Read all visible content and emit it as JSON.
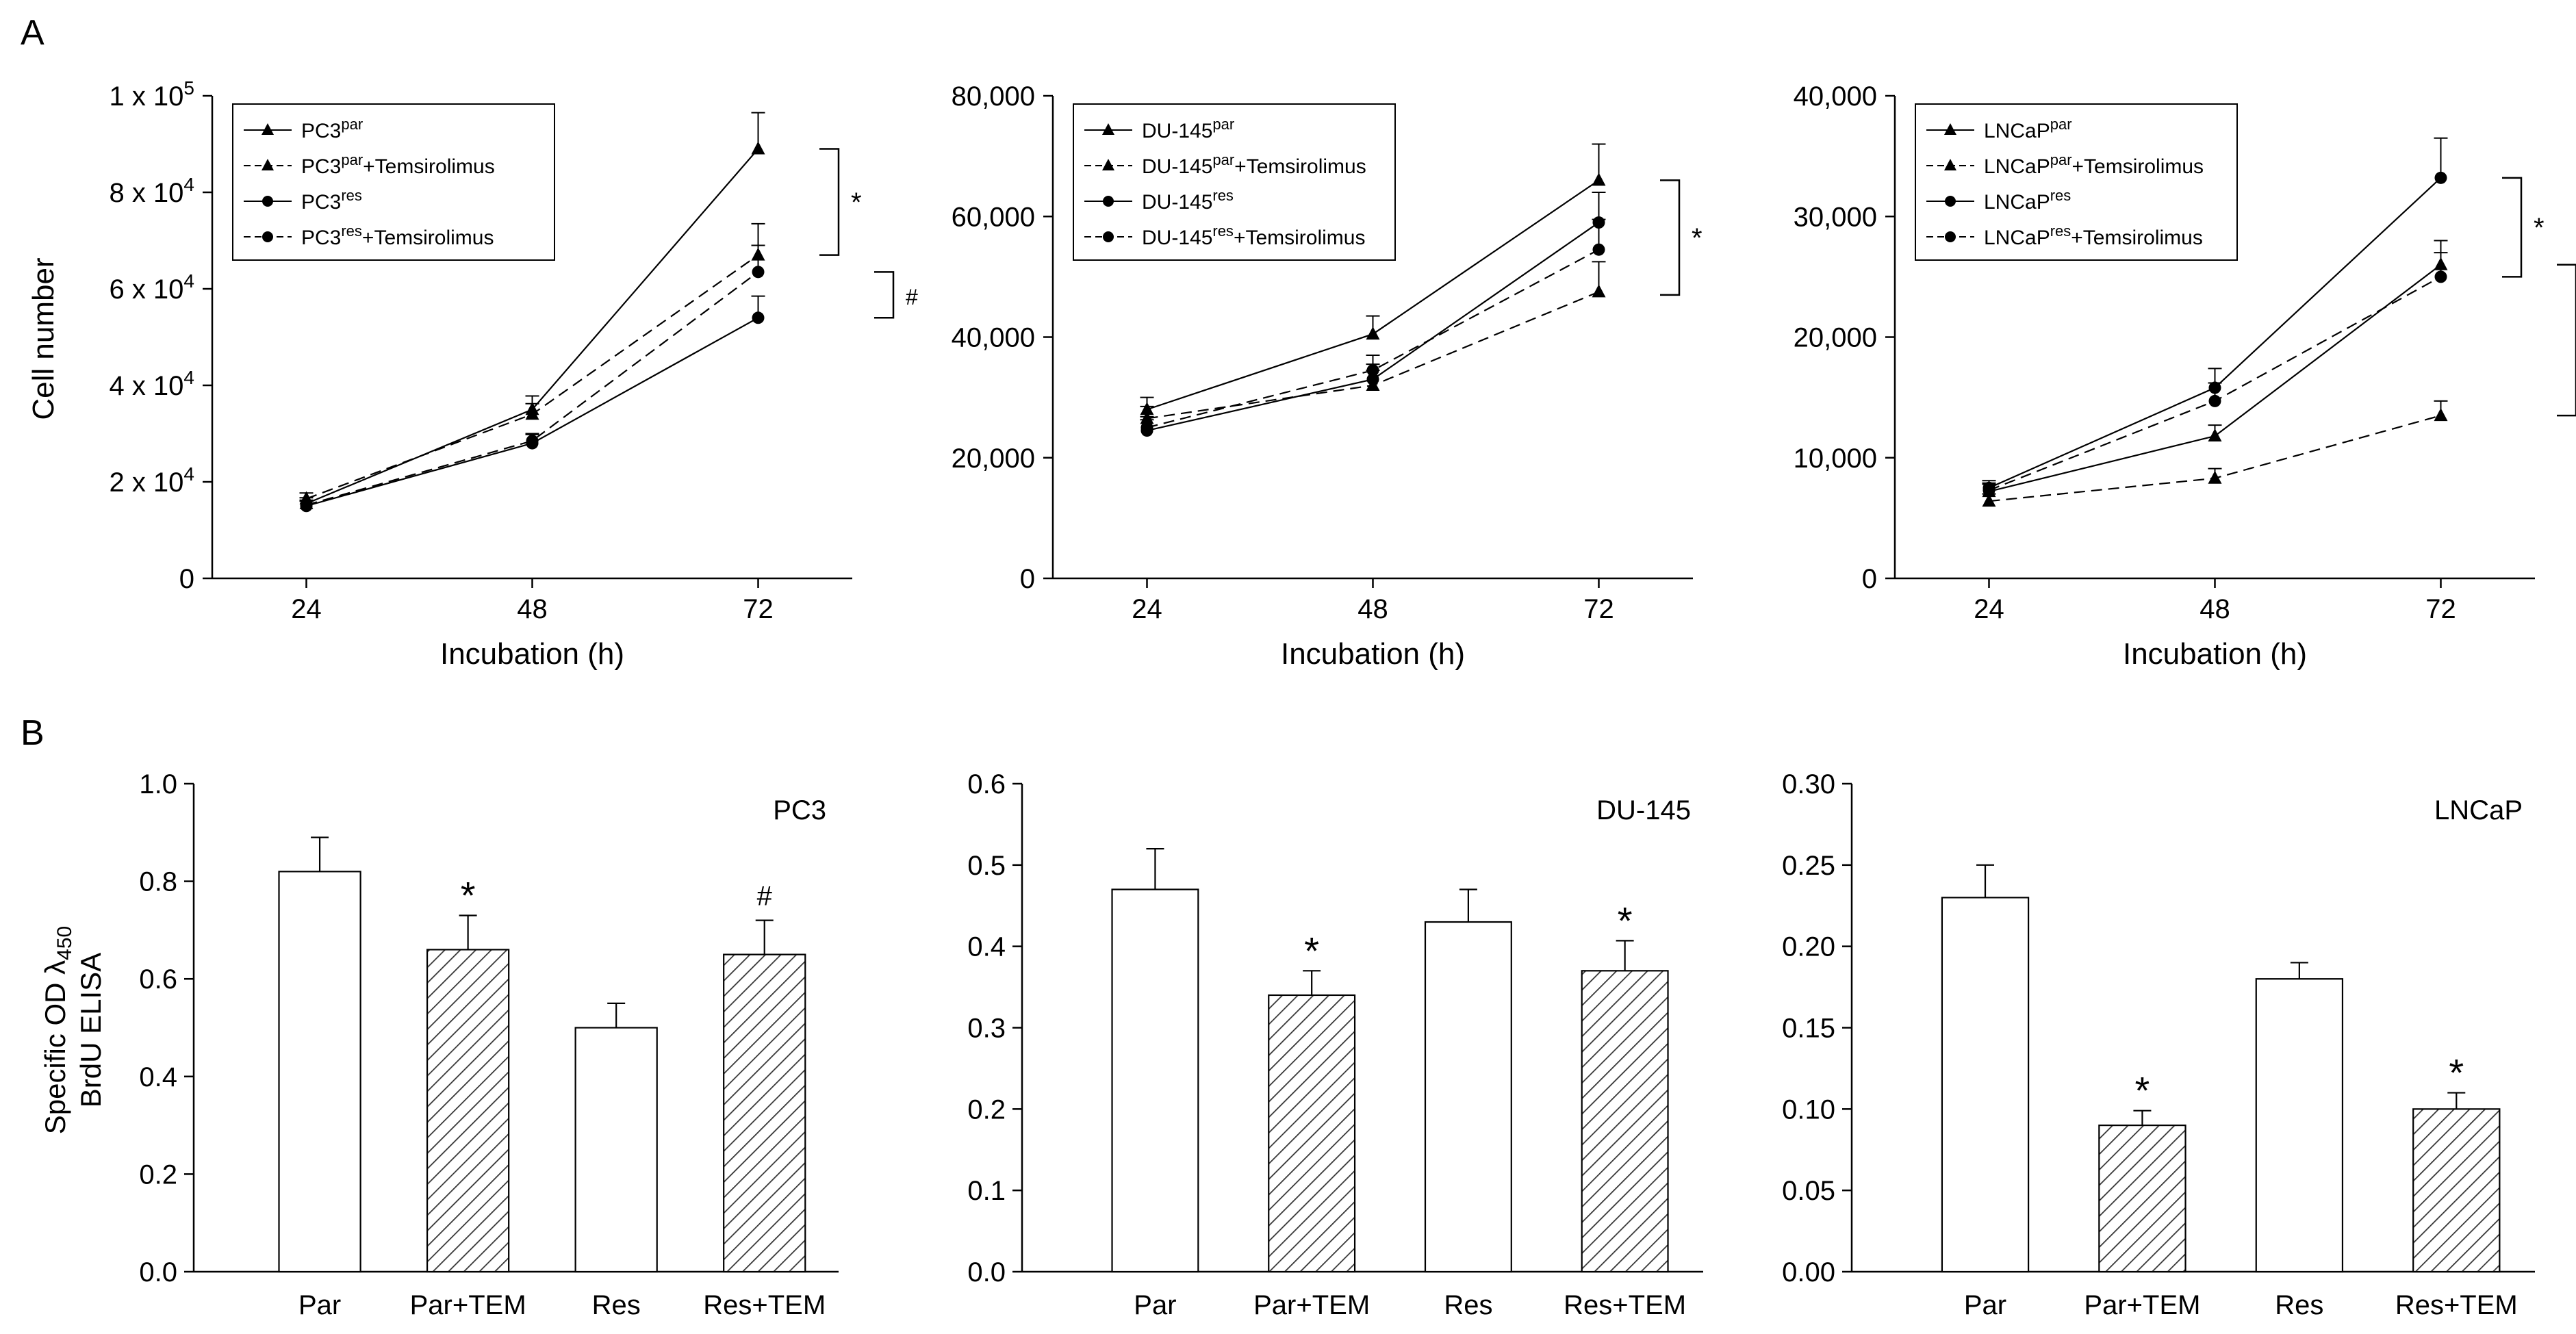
{
  "figure": {
    "panel_a_letter": "A",
    "panel_b_letter": "B",
    "panel_a_ylabel": "Cell number",
    "panel_b_ylabel_line1": "Specific OD λ",
    "panel_b_ylabel_sub": "450",
    "panel_b_ylabel_line2": "BrdU ELISA"
  },
  "chart_data": [
    {
      "id": "a1",
      "type": "line",
      "title": "",
      "cell_line": "PC3",
      "x": [
        24,
        48,
        72
      ],
      "xlabel": "Incubation (h)",
      "ylabel": "Cell number",
      "ylim": [
        0,
        100000
      ],
      "ytick_values": [
        0,
        20000,
        40000,
        60000,
        80000,
        100000
      ],
      "ytick_format": "sci",
      "yticks": [
        {
          "mantissa": "0",
          "exp": ""
        },
        {
          "mantissa": "2 x 10",
          "exp": "4"
        },
        {
          "mantissa": "4 x 10",
          "exp": "4"
        },
        {
          "mantissa": "6 x 10",
          "exp": "4"
        },
        {
          "mantissa": "8 x 10",
          "exp": "4"
        },
        {
          "mantissa": "1 x 10",
          "exp": "5"
        }
      ],
      "xticks": [
        "24",
        "48",
        "72"
      ],
      "legend_position": "top-left",
      "series": [
        {
          "base": "PC3",
          "sup": "par",
          "suffix": "",
          "marker": "triangle",
          "dash": false,
          "values": [
            15500,
            35000,
            89000
          ],
          "errors": [
            1200,
            2800,
            7500
          ]
        },
        {
          "base": "PC3",
          "sup": "par",
          "suffix": "+Temsirolimus",
          "marker": "triangle",
          "dash": true,
          "values": [
            16500,
            34000,
            67000
          ],
          "errors": [
            1200,
            2200,
            6500
          ]
        },
        {
          "base": "PC3",
          "sup": "res",
          "suffix": "",
          "marker": "circle",
          "dash": false,
          "values": [
            15000,
            28000,
            54000
          ],
          "errors": [
            1000,
            1800,
            4500
          ]
        },
        {
          "base": "PC3",
          "sup": "res",
          "suffix": "+Temsirolimus",
          "marker": "circle",
          "dash": true,
          "values": [
            15200,
            28500,
            63500
          ],
          "errors": [
            1000,
            1500,
            5500
          ]
        }
      ],
      "brackets": [
        {
          "from": 89000,
          "to": 67000,
          "label": "*"
        },
        {
          "from": 63500,
          "to": 54000,
          "label": "#"
        }
      ]
    },
    {
      "id": "a2",
      "type": "line",
      "title": "",
      "cell_line": "DU-145",
      "x": [
        24,
        48,
        72
      ],
      "xlabel": "Incubation (h)",
      "ylabel": "",
      "ylim": [
        0,
        80000
      ],
      "ytick_values": [
        0,
        20000,
        40000,
        60000,
        80000
      ],
      "ytick_format": "plain",
      "yticks": [
        {
          "mantissa": "0",
          "exp": ""
        },
        {
          "mantissa": "20,000",
          "exp": ""
        },
        {
          "mantissa": "40,000",
          "exp": ""
        },
        {
          "mantissa": "60,000",
          "exp": ""
        },
        {
          "mantissa": "80,000",
          "exp": ""
        }
      ],
      "xticks": [
        "24",
        "48",
        "72"
      ],
      "legend_position": "top-left",
      "series": [
        {
          "base": "DU-145",
          "sup": "par",
          "suffix": "",
          "marker": "triangle",
          "dash": false,
          "values": [
            28000,
            40500,
            66000
          ],
          "errors": [
            2000,
            3000,
            6000
          ]
        },
        {
          "base": "DU-145",
          "sup": "par",
          "suffix": "+Temsirolimus",
          "marker": "triangle",
          "dash": true,
          "values": [
            26500,
            32000,
            47500
          ],
          "errors": [
            2000,
            2500,
            5000
          ]
        },
        {
          "base": "DU-145",
          "sup": "res",
          "suffix": "",
          "marker": "circle",
          "dash": false,
          "values": [
            24500,
            33000,
            59000
          ],
          "errors": [
            1800,
            2500,
            5000
          ]
        },
        {
          "base": "DU-145",
          "sup": "res",
          "suffix": "+Temsirolimus",
          "marker": "circle",
          "dash": true,
          "values": [
            25000,
            34500,
            54500
          ],
          "errors": [
            1800,
            2500,
            5000
          ]
        }
      ],
      "brackets": [
        {
          "from": 66000,
          "to": 47000,
          "label": "*"
        }
      ]
    },
    {
      "id": "a3",
      "type": "line",
      "title": "",
      "cell_line": "LNCaP",
      "x": [
        24,
        48,
        72
      ],
      "xlabel": "Incubation (h)",
      "ylabel": "",
      "ylim": [
        0,
        40000
      ],
      "ytick_values": [
        0,
        10000,
        20000,
        30000,
        40000
      ],
      "ytick_format": "plain",
      "yticks": [
        {
          "mantissa": "0",
          "exp": ""
        },
        {
          "mantissa": "10,000",
          "exp": ""
        },
        {
          "mantissa": "20,000",
          "exp": ""
        },
        {
          "mantissa": "30,000",
          "exp": ""
        },
        {
          "mantissa": "40,000",
          "exp": ""
        }
      ],
      "xticks": [
        "24",
        "48",
        "72"
      ],
      "legend_position": "top-left",
      "series": [
        {
          "base": "LNCaP",
          "sup": "par",
          "suffix": "",
          "marker": "triangle",
          "dash": false,
          "values": [
            7200,
            11800,
            26000
          ],
          "errors": [
            600,
            900,
            2000
          ]
        },
        {
          "base": "LNCaP",
          "sup": "par",
          "suffix": "+Temsirolimus",
          "marker": "triangle",
          "dash": true,
          "values": [
            6400,
            8300,
            13500
          ],
          "errors": [
            600,
            800,
            1200
          ]
        },
        {
          "base": "LNCaP",
          "sup": "res",
          "suffix": "",
          "marker": "circle",
          "dash": false,
          "values": [
            7500,
            15800,
            33200
          ],
          "errors": [
            600,
            1600,
            3300
          ]
        },
        {
          "base": "LNCaP",
          "sup": "res",
          "suffix": "+Temsirolimus",
          "marker": "circle",
          "dash": true,
          "values": [
            7300,
            14700,
            25000
          ],
          "errors": [
            600,
            1500,
            2000
          ]
        }
      ],
      "brackets": [
        {
          "from": 33200,
          "to": 25000,
          "label": "*"
        },
        {
          "from": 26000,
          "to": 13500,
          "label": "*"
        }
      ]
    },
    {
      "id": "b1",
      "type": "bar",
      "title": "PC3",
      "categories": [
        "Par",
        "Par+TEM",
        "Res",
        "Res+TEM"
      ],
      "values": [
        0.82,
        0.66,
        0.5,
        0.65
      ],
      "errors": [
        0.07,
        0.07,
        0.05,
        0.07
      ],
      "hatched": [
        false,
        true,
        false,
        true
      ],
      "annotations": [
        "",
        "*",
        "",
        "#"
      ],
      "ylim": [
        0,
        1.0
      ],
      "ytick_values": [
        0,
        0.2,
        0.4,
        0.6,
        0.8,
        1.0
      ],
      "yticks": [
        "0.0",
        "0.2",
        "0.4",
        "0.6",
        "0.8",
        "1.0"
      ]
    },
    {
      "id": "b2",
      "type": "bar",
      "title": "DU-145",
      "categories": [
        "Par",
        "Par+TEM",
        "Res",
        "Res+TEM"
      ],
      "values": [
        0.47,
        0.34,
        0.43,
        0.37
      ],
      "errors": [
        0.05,
        0.03,
        0.04,
        0.037
      ],
      "hatched": [
        false,
        true,
        false,
        true
      ],
      "annotations": [
        "",
        "*",
        "",
        "*"
      ],
      "ylim": [
        0,
        0.6
      ],
      "ytick_values": [
        0,
        0.1,
        0.2,
        0.3,
        0.4,
        0.5,
        0.6
      ],
      "yticks": [
        "0.0",
        "0.1",
        "0.2",
        "0.3",
        "0.4",
        "0.5",
        "0.6"
      ]
    },
    {
      "id": "b3",
      "type": "bar",
      "title": "LNCaP",
      "categories": [
        "Par",
        "Par+TEM",
        "Res",
        "Res+TEM"
      ],
      "values": [
        0.23,
        0.09,
        0.18,
        0.1
      ],
      "errors": [
        0.02,
        0.009,
        0.01,
        0.01
      ],
      "hatched": [
        false,
        true,
        false,
        true
      ],
      "annotations": [
        "",
        "*",
        "",
        "*"
      ],
      "ylim": [
        0,
        0.3
      ],
      "ytick_values": [
        0,
        0.05,
        0.1,
        0.15,
        0.2,
        0.25,
        0.3
      ],
      "yticks": [
        "0.00",
        "0.05",
        "0.10",
        "0.15",
        "0.20",
        "0.25",
        "0.30"
      ]
    }
  ]
}
